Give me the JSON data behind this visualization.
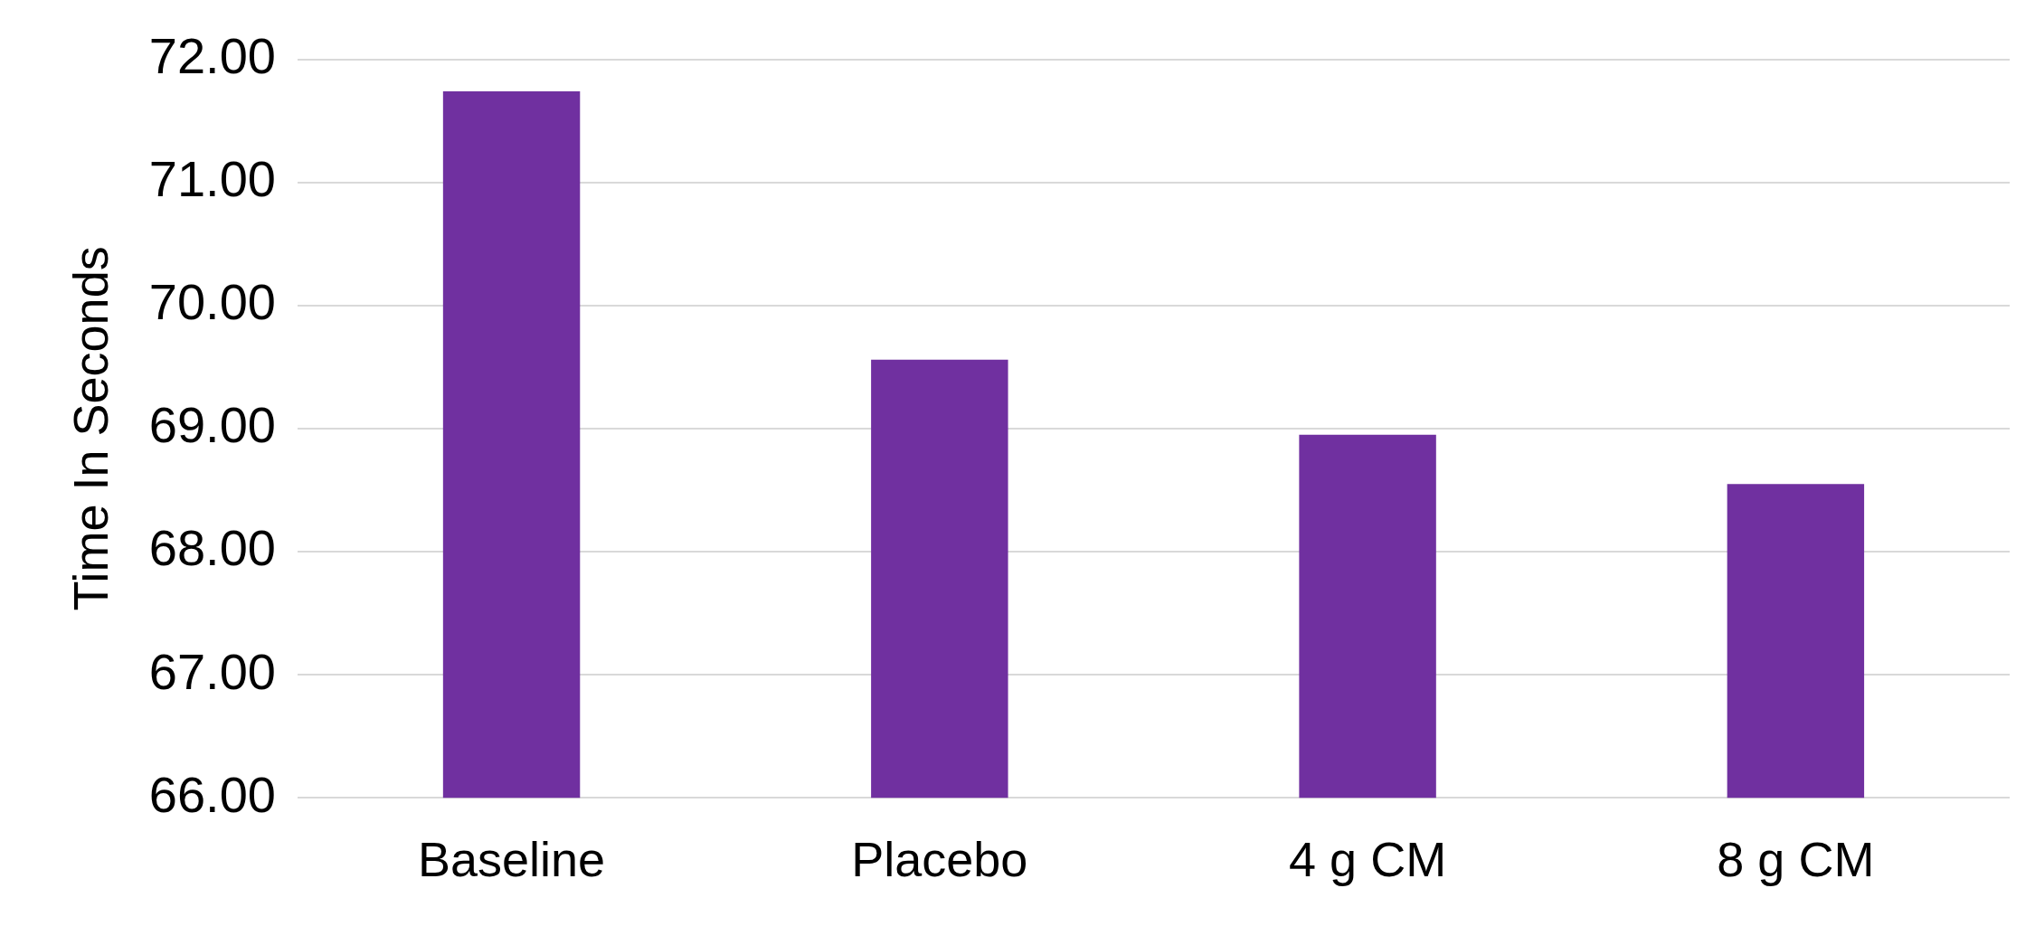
{
  "chart_data": {
    "type": "bar",
    "ylabel": "Time In Seconds",
    "categories": [
      "Baseline",
      "Placebo",
      "4 g CM",
      "8 g CM"
    ],
    "values": [
      71.74,
      69.56,
      68.95,
      68.55
    ],
    "color": "#7030a0",
    "ylim": [
      66,
      72
    ],
    "yticks": [
      {
        "value": 66,
        "label": "66.00"
      },
      {
        "value": 67,
        "label": "67.00"
      },
      {
        "value": 68,
        "label": "68.00"
      },
      {
        "value": 69,
        "label": "69.00"
      },
      {
        "value": 70,
        "label": "70.00"
      },
      {
        "value": 71,
        "label": "71.00"
      },
      {
        "value": 72,
        "label": "72.00"
      }
    ],
    "grid": "y",
    "legend": false
  }
}
